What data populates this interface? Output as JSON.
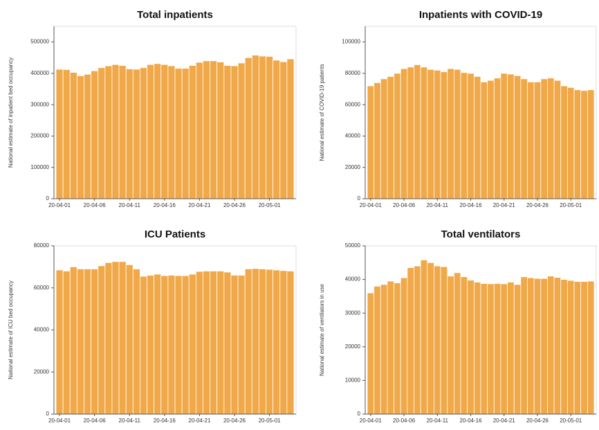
{
  "chart_data": [
    {
      "type": "bar",
      "title": "Total inpatients",
      "ylabel": "National estimate of inpatient bed occupancy",
      "categories": [
        "20-04-01",
        null,
        null,
        null,
        null,
        "20-04-06",
        null,
        null,
        null,
        null,
        "20-04-11",
        null,
        null,
        null,
        null,
        "20-04-16",
        null,
        null,
        null,
        null,
        "20-04-21",
        null,
        null,
        null,
        null,
        "20-04-26",
        null,
        null,
        null,
        null,
        "20-05-01",
        null,
        null,
        null
      ],
      "values": [
        413000,
        412000,
        403000,
        392000,
        397000,
        408000,
        418000,
        424000,
        428000,
        425000,
        414000,
        413000,
        418000,
        428000,
        431000,
        428000,
        424000,
        416000,
        416000,
        425000,
        435000,
        440000,
        440000,
        436000,
        425000,
        424000,
        433000,
        450000,
        458000,
        455000,
        454000,
        442000,
        437000,
        446000
      ],
      "color": "#f0a848",
      "ylim": [
        0,
        550000
      ],
      "yticks": [
        0,
        100000,
        200000,
        300000,
        400000,
        500000
      ]
    },
    {
      "type": "bar",
      "title": "Inpatients with COVID-19",
      "ylabel": "National estimate of COVID-19 patients",
      "categories": [
        "20-04-01",
        null,
        null,
        null,
        null,
        "20-04-06",
        null,
        null,
        null,
        null,
        "20-04-11",
        null,
        null,
        null,
        null,
        "20-04-16",
        null,
        null,
        null,
        null,
        "20-04-21",
        null,
        null,
        null,
        null,
        "20-04-26",
        null,
        null,
        null,
        null,
        "20-05-01",
        null,
        null,
        null
      ],
      "values": [
        72000,
        74000,
        76500,
        78000,
        80000,
        83000,
        84000,
        85500,
        84000,
        82500,
        82000,
        81000,
        83000,
        82500,
        80500,
        80000,
        78000,
        74500,
        75500,
        77000,
        80000,
        79500,
        78500,
        76500,
        74500,
        74500,
        76500,
        77000,
        75500,
        72000,
        71000,
        69500,
        69000,
        69500
      ],
      "color": "#f0a848",
      "ylim": [
        0,
        110000
      ],
      "yticks": [
        0,
        20000,
        40000,
        60000,
        80000,
        100000
      ]
    },
    {
      "type": "bar",
      "title": "ICU Patients",
      "ylabel": "National estimate of ICU bed occupancy",
      "categories": [
        "20-04-01",
        null,
        null,
        null,
        null,
        "20-04-06",
        null,
        null,
        null,
        null,
        "20-04-11",
        null,
        null,
        null,
        null,
        "20-04-16",
        null,
        null,
        null,
        null,
        "20-04-21",
        null,
        null,
        null,
        null,
        "20-04-26",
        null,
        null,
        null,
        null,
        "20-05-01",
        null,
        null,
        null
      ],
      "values": [
        68500,
        68000,
        70000,
        69000,
        69000,
        69000,
        70500,
        72000,
        72500,
        72500,
        71000,
        69000,
        65500,
        66000,
        66500,
        65800,
        66000,
        65800,
        65800,
        66500,
        67800,
        68000,
        68000,
        68000,
        67500,
        66000,
        66000,
        69000,
        69200,
        69000,
        68800,
        68500,
        68200,
        68000
      ],
      "color": "#f0a848",
      "ylim": [
        0,
        80000
      ],
      "yticks": [
        0,
        20000,
        40000,
        60000,
        80000
      ]
    },
    {
      "type": "bar",
      "title": "Total ventilators",
      "ylabel": "National estimate of ventilators in use",
      "categories": [
        "20-04-01",
        null,
        null,
        null,
        null,
        "20-04-06",
        null,
        null,
        null,
        null,
        "20-04-11",
        null,
        null,
        null,
        null,
        "20-04-16",
        null,
        null,
        null,
        null,
        "20-04-21",
        null,
        null,
        null,
        null,
        "20-04-26",
        null,
        null,
        null,
        null,
        "20-05-01",
        null,
        null,
        null
      ],
      "values": [
        36000,
        38000,
        38500,
        39500,
        39000,
        40500,
        43500,
        44000,
        45800,
        45000,
        44000,
        43800,
        41000,
        42000,
        40800,
        39800,
        39200,
        38800,
        38700,
        38800,
        38700,
        39200,
        38500,
        40800,
        40500,
        40300,
        40300,
        41000,
        40600,
        40000,
        39700,
        39400,
        39400,
        39500
      ],
      "color": "#f0a848",
      "ylim": [
        0,
        50000
      ],
      "yticks": [
        0,
        10000,
        20000,
        30000,
        40000,
        50000
      ]
    }
  ]
}
